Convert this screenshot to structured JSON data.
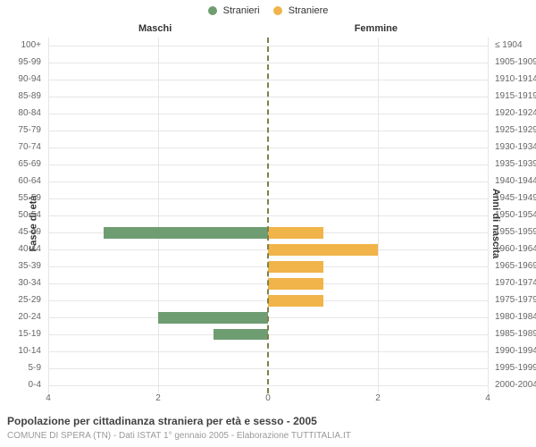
{
  "legend": {
    "male": {
      "label": "Stranieri",
      "color": "#6f9d72"
    },
    "female": {
      "label": "Straniere",
      "color": "#f0b44a"
    }
  },
  "side_titles": {
    "left": "Maschi",
    "right": "Femmine"
  },
  "y_axis_titles": {
    "left": "Fasce di età",
    "right": "Anni di nascita"
  },
  "chart": {
    "type": "pyramid-bar",
    "x_max": 4,
    "x_ticks": [
      -4,
      -2,
      0,
      2,
      4
    ],
    "x_tick_labels": [
      "4",
      "2",
      "0",
      "2",
      "4"
    ],
    "grid_color": "#e6e6e6",
    "center_line_color": "#818048",
    "background_color": "#ffffff",
    "label_fontsize": 10,
    "bar_height_ratio": 0.68,
    "colors": {
      "male": "#6f9d72",
      "female": "#f0b44a"
    },
    "rows": [
      {
        "age": "100+",
        "years": "≤ 1904",
        "male": 0,
        "female": 0
      },
      {
        "age": "95-99",
        "years": "1905-1909",
        "male": 0,
        "female": 0
      },
      {
        "age": "90-94",
        "years": "1910-1914",
        "male": 0,
        "female": 0
      },
      {
        "age": "85-89",
        "years": "1915-1919",
        "male": 0,
        "female": 0
      },
      {
        "age": "80-84",
        "years": "1920-1924",
        "male": 0,
        "female": 0
      },
      {
        "age": "75-79",
        "years": "1925-1929",
        "male": 0,
        "female": 0
      },
      {
        "age": "70-74",
        "years": "1930-1934",
        "male": 0,
        "female": 0
      },
      {
        "age": "65-69",
        "years": "1935-1939",
        "male": 0,
        "female": 0
      },
      {
        "age": "60-64",
        "years": "1940-1944",
        "male": 0,
        "female": 0
      },
      {
        "age": "55-59",
        "years": "1945-1949",
        "male": 0,
        "female": 0
      },
      {
        "age": "50-54",
        "years": "1950-1954",
        "male": 0,
        "female": 0
      },
      {
        "age": "45-49",
        "years": "1955-1959",
        "male": 3,
        "female": 1
      },
      {
        "age": "40-44",
        "years": "1960-1964",
        "male": 0,
        "female": 2
      },
      {
        "age": "35-39",
        "years": "1965-1969",
        "male": 0,
        "female": 1
      },
      {
        "age": "30-34",
        "years": "1970-1974",
        "male": 0,
        "female": 1
      },
      {
        "age": "25-29",
        "years": "1975-1979",
        "male": 0,
        "female": 1
      },
      {
        "age": "20-24",
        "years": "1980-1984",
        "male": 2,
        "female": 0
      },
      {
        "age": "15-19",
        "years": "1985-1989",
        "male": 1,
        "female": 0
      },
      {
        "age": "10-14",
        "years": "1990-1994",
        "male": 0,
        "female": 0
      },
      {
        "age": "5-9",
        "years": "1995-1999",
        "male": 0,
        "female": 0
      },
      {
        "age": "0-4",
        "years": "2000-2004",
        "male": 0,
        "female": 0
      }
    ]
  },
  "footer": {
    "title": "Popolazione per cittadinanza straniera per età e sesso - 2005",
    "subtitle": "COMUNE DI SPERA (TN) - Dati ISTAT 1° gennaio 2005 - Elaborazione TUTTITALIA.IT"
  }
}
